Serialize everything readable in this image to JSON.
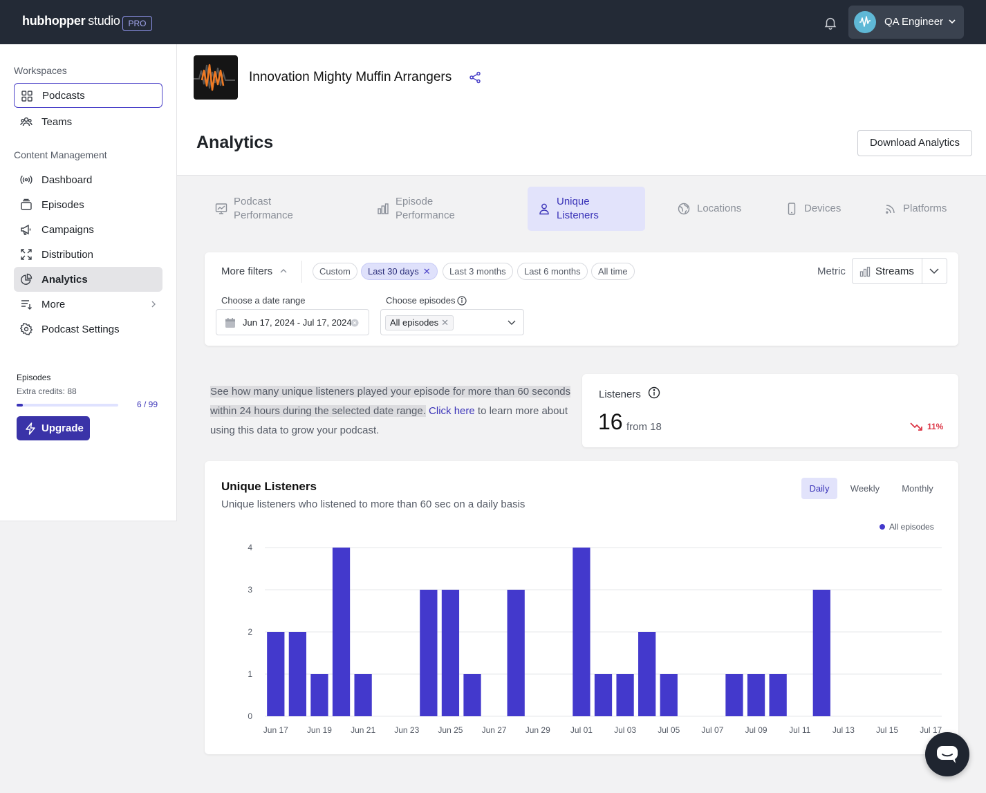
{
  "topbar": {
    "logo_bold": "hubhopper",
    "logo_light": "studio",
    "plan_badge": "PRO",
    "user_name": "QA Engineer"
  },
  "sidebar": {
    "workspaces_heading": "Workspaces",
    "workspaces": [
      {
        "label": "Podcasts",
        "icon": "grid-icon"
      },
      {
        "label": "Teams",
        "icon": "team-icon"
      }
    ],
    "content_heading": "Content Management",
    "items": [
      {
        "label": "Dashboard",
        "icon": "broadcast-icon"
      },
      {
        "label": "Episodes",
        "icon": "stack-icon"
      },
      {
        "label": "Campaigns",
        "icon": "megaphone-icon"
      },
      {
        "label": "Distribution",
        "icon": "expand-icon"
      },
      {
        "label": "Analytics",
        "icon": "pie-chart-icon",
        "active": true
      },
      {
        "label": "More",
        "icon": "list-icon"
      },
      {
        "label": "Podcast Settings",
        "icon": "gear-icon"
      }
    ],
    "episodes_label": "Episodes",
    "extra_credits": "Extra credits: 88",
    "episodes_count": "6 / 99",
    "episodes_progress": 0.0606,
    "upgrade_label": "Upgrade"
  },
  "header": {
    "podcast_title": "Innovation Mighty Muffin Arrangers",
    "page_title": "Analytics",
    "download_label": "Download Analytics"
  },
  "tabs": [
    {
      "line1": "Podcast",
      "line2": "Performance",
      "icon": "chart-frame-icon"
    },
    {
      "line1": "Episode",
      "line2": "Performance",
      "icon": "bar-chart-icon"
    },
    {
      "line1": "Unique",
      "line2": "Listeners",
      "icon": "user-icon",
      "active": true
    },
    {
      "line1": "Locations",
      "line2": "",
      "icon": "globe-icon"
    },
    {
      "line1": "Devices",
      "line2": "",
      "icon": "phone-icon"
    },
    {
      "line1": "Platforms",
      "line2": "",
      "icon": "rss-icon"
    }
  ],
  "filters": {
    "more_filters": "More filters",
    "chips": [
      "Custom",
      "Last 30 days",
      "Last 3 months",
      "Last 6 months",
      "All time"
    ],
    "selected_chip": "Last 30 days",
    "metric_label": "Metric",
    "metric_value": "Streams",
    "date_range_label": "Choose a date range",
    "date_range_value": "Jun 17, 2024 - Jul 17, 2024",
    "episodes_label": "Choose episodes",
    "episodes_value": "All episodes"
  },
  "description": {
    "highlighted": "See how many unique listeners played your episode for more than 60 seconds within 24 hours during the selected date range.",
    "link": "Click here",
    "rest": "to learn more about using this data to grow your podcast."
  },
  "listeners_card": {
    "label": "Listeners",
    "value": "16",
    "from": "from 18",
    "change": "11%",
    "trend": "down",
    "trend_color": "#dc3545"
  },
  "chart_card": {
    "title": "Unique Listeners",
    "subtitle": "Unique listeners who listened to more than 60 sec on a daily basis",
    "periods": [
      "Daily",
      "Weekly",
      "Monthly"
    ],
    "active_period": "Daily"
  },
  "chart_data": {
    "type": "bar",
    "x": [
      "Jun 17",
      "Jun 18",
      "Jun 19",
      "Jun 20",
      "Jun 21",
      "Jun 22",
      "Jun 23",
      "Jun 24",
      "Jun 25",
      "Jun 26",
      "Jun 27",
      "Jun 28",
      "Jun 29",
      "Jun 30",
      "Jul 01",
      "Jul 02",
      "Jul 03",
      "Jul 04",
      "Jul 05",
      "Jul 06",
      "Jul 07",
      "Jul 08",
      "Jul 09",
      "Jul 10",
      "Jul 11",
      "Jul 12",
      "Jul 13",
      "Jul 14",
      "Jul 15",
      "Jul 16",
      "Jul 17"
    ],
    "tick_labels": [
      "Jun 17",
      "Jun 19",
      "Jun 21",
      "Jun 23",
      "Jun 25",
      "Jun 27",
      "Jun 29",
      "Jul 01",
      "Jul 03",
      "Jul 05",
      "Jul 07",
      "Jul 09",
      "Jul 11",
      "Jul 13",
      "Jul 15",
      "Jul 17"
    ],
    "series": [
      {
        "name": "All episodes",
        "color": "#4339cc",
        "values": [
          2,
          2,
          1,
          4,
          1,
          0,
          0,
          3,
          3,
          1,
          0,
          3,
          0,
          0,
          4,
          1,
          1,
          2,
          1,
          0,
          0,
          1,
          1,
          1,
          0,
          3,
          0,
          0,
          0,
          0,
          0
        ]
      }
    ],
    "yticks": [
      0,
      1,
      2,
      3,
      4
    ],
    "ylim": [
      0,
      4
    ],
    "grid": true,
    "legend": "top-right"
  }
}
